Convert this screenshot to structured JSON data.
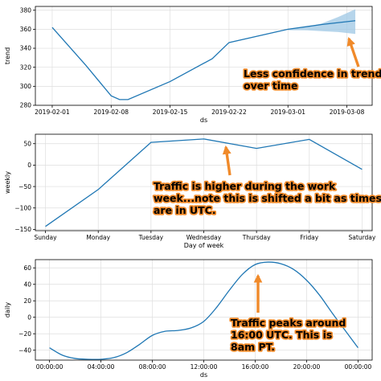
{
  "chart_data": [
    {
      "type": "line",
      "xlabel": "ds",
      "ylabel": "trend",
      "x_ticks": [
        "2019-02-01",
        "2019-02-08",
        "2019-02-15",
        "2019-02-22",
        "2019-03-01",
        "2019-03-08"
      ],
      "y_ticks": [
        280,
        300,
        320,
        340,
        360,
        380
      ],
      "xlim": [
        "2019-01-30",
        "2019-03-11"
      ],
      "ylim": [
        280,
        384
      ],
      "series": [
        {
          "x": [
            "2019-02-01",
            "2019-02-05",
            "2019-02-08",
            "2019-02-09",
            "2019-02-10",
            "2019-02-15",
            "2019-02-20",
            "2019-02-22",
            "2019-03-01",
            "2019-03-05",
            "2019-03-09"
          ],
          "y": [
            362,
            322,
            290,
            286,
            286,
            305,
            329,
            346,
            360,
            365,
            369
          ],
          "color": "#1f77b4"
        }
      ],
      "uncertainty": {
        "x": [
          "2019-03-01",
          "2019-03-03",
          "2019-03-05",
          "2019-03-07",
          "2019-03-09"
        ],
        "lower": [
          359,
          359,
          358,
          357,
          355
        ],
        "upper": [
          360,
          362,
          366,
          373,
          381
        ],
        "color": "#9ec7e4"
      },
      "grid": true,
      "annotation": {
        "lines": [
          "Less confidence in trend",
          "over time"
        ]
      }
    },
    {
      "type": "line",
      "xlabel": "Day of week",
      "ylabel": "weekly",
      "categories": [
        "Sunday",
        "Monday",
        "Tuesday",
        "Wednesday",
        "Thursday",
        "Friday",
        "Saturday"
      ],
      "y_ticks": [
        50,
        0,
        -50,
        -100,
        -150
      ],
      "ylim": [
        -153,
        72
      ],
      "series": [
        {
          "values": [
            -143,
            -57,
            53,
            61,
            39,
            60,
            -10
          ],
          "color": "#1f77b4"
        }
      ],
      "grid": true,
      "annotation": {
        "lines": [
          "Traffic is higher during the work",
          "week...note this is shifted a bit as times",
          "are in UTC."
        ]
      }
    },
    {
      "type": "line",
      "xlabel": "ds",
      "ylabel": "daily",
      "x_ticks": [
        "00:00:00",
        "04:00:00",
        "08:00:00",
        "12:00:00",
        "16:00:00",
        "20:00:00",
        "00:00:00"
      ],
      "y_ticks": [
        60,
        40,
        20,
        0,
        -20,
        -40
      ],
      "xlim": [
        -1.1,
        25.1
      ],
      "ylim": [
        -52,
        70
      ],
      "series": [
        {
          "x": [
            0,
            1,
            2,
            3,
            4,
            5,
            6,
            7,
            8,
            9,
            10,
            11,
            12,
            13,
            14,
            15,
            16,
            17,
            18,
            19,
            20,
            21,
            22,
            23,
            24
          ],
          "y": [
            -37,
            -46,
            -50,
            -51,
            -51,
            -49,
            -43,
            -33,
            -22,
            -17,
            -16,
            -13,
            -5,
            12,
            33,
            52,
            64,
            67,
            65,
            58,
            45,
            27,
            5,
            -16,
            -37
          ],
          "color": "#1f77b4"
        }
      ],
      "grid": true,
      "annotation": {
        "lines": [
          "Traffic peaks around",
          "16:00 UTC. This is",
          "8am PT."
        ]
      }
    }
  ]
}
